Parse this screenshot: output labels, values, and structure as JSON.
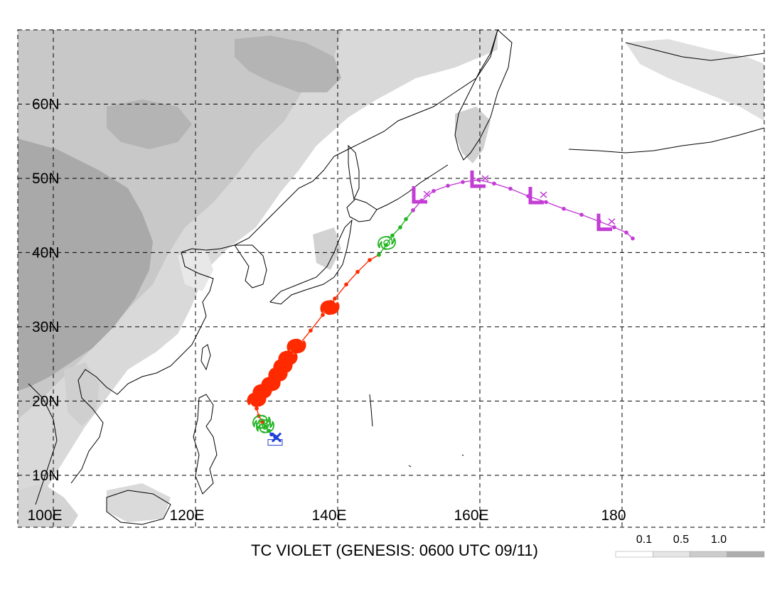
{
  "map": {
    "title": "TC VIOLET (GENESIS: 0600 UTC 09/11)",
    "lat_labels": [
      "10N",
      "20N",
      "30N",
      "40N",
      "50N",
      "60N"
    ],
    "lon_labels": [
      "100E",
      "120E",
      "140E",
      "160E",
      "180"
    ],
    "extent": {
      "lon_min": 95,
      "lon_max": 200,
      "lat_min": 3,
      "lat_max": 70
    },
    "lat_ticks": [
      10,
      20,
      30,
      40,
      50,
      60
    ],
    "lon_ticks": [
      100,
      120,
      140,
      160,
      180
    ],
    "legend": {
      "labels": [
        "0.1",
        "0.5",
        "1.0"
      ],
      "colors": [
        "#ffffff",
        "#e6e6e6",
        "#cccccc",
        "#adadad"
      ]
    },
    "colors": {
      "tropical_depression": "#1f3fd6",
      "tropical_storm": "#22b422",
      "typhoon": "#ff2a00",
      "extratropical": "#c33cd6"
    },
    "track": [
      {
        "stage": "tropical_depression",
        "points": [
          [
            131.2,
            15.2
          ],
          [
            130.7,
            15.5
          ],
          [
            130.3,
            16.0
          ]
        ]
      },
      {
        "stage": "tropical_storm",
        "points": [
          [
            130.3,
            16.0
          ],
          [
            129.8,
            16.6
          ],
          [
            129.4,
            17.2
          ]
        ]
      },
      {
        "stage": "typhoon",
        "points": [
          [
            129.4,
            17.2
          ],
          [
            128.9,
            18.0
          ],
          [
            128.6,
            19.0
          ],
          [
            128.7,
            20.0
          ],
          [
            129.3,
            21.0
          ],
          [
            130.2,
            22.2
          ],
          [
            131.0,
            23.0
          ],
          [
            131.9,
            24.2
          ],
          [
            132.5,
            25.1
          ],
          [
            133.4,
            26.2
          ],
          [
            134.5,
            27.5
          ],
          [
            136.2,
            29.5
          ],
          [
            137.9,
            31.6
          ],
          [
            139.6,
            33.8
          ],
          [
            141.2,
            35.7
          ],
          [
            142.8,
            37.4
          ],
          [
            144.5,
            39.0
          ],
          [
            145.8,
            39.7
          ]
        ]
      },
      {
        "stage": "tropical_storm",
        "points": [
          [
            145.8,
            39.7
          ],
          [
            146.8,
            41.0
          ],
          [
            147.7,
            42.3
          ],
          [
            148.8,
            43.4
          ],
          [
            149.6,
            44.5
          ],
          [
            150.6,
            45.7
          ]
        ]
      },
      {
        "stage": "extratropical",
        "points": [
          [
            150.6,
            45.7
          ],
          [
            151.8,
            47.0
          ],
          [
            153.5,
            48.3
          ],
          [
            155.5,
            49.0
          ],
          [
            157.6,
            49.5
          ],
          [
            159.8,
            49.8
          ],
          [
            162.0,
            49.3
          ],
          [
            164.3,
            48.6
          ],
          [
            166.8,
            47.6
          ],
          [
            169.3,
            46.8
          ],
          [
            171.8,
            45.9
          ],
          [
            174.3,
            45.1
          ],
          [
            176.8,
            44.2
          ],
          [
            178.9,
            43.4
          ],
          [
            180.6,
            42.7
          ],
          [
            181.5,
            41.9
          ]
        ]
      }
    ],
    "symbols": [
      {
        "type": "x",
        "stage": "tropical_depression",
        "lon": 131.4,
        "lat": 15.1
      },
      {
        "type": "tc-open",
        "stage": "tropical_storm",
        "lon": 129.8,
        "lat": 16.6
      },
      {
        "type": "tc-open",
        "stage": "tropical_storm",
        "lon": 129.3,
        "lat": 17.2
      },
      {
        "type": "tc-filled",
        "stage": "typhoon",
        "lon": 128.6,
        "lat": 20.2
      },
      {
        "type": "tc-filled",
        "stage": "typhoon",
        "lon": 129.4,
        "lat": 21.3
      },
      {
        "type": "tc-filled",
        "stage": "typhoon",
        "lon": 130.6,
        "lat": 22.3
      },
      {
        "type": "tc-filled",
        "stage": "typhoon",
        "lon": 131.6,
        "lat": 23.6
      },
      {
        "type": "tc-filled",
        "stage": "typhoon",
        "lon": 132.3,
        "lat": 24.7
      },
      {
        "type": "tc-filled",
        "stage": "typhoon",
        "lon": 133.0,
        "lat": 25.8
      },
      {
        "type": "tc-filled",
        "stage": "typhoon",
        "lon": 134.2,
        "lat": 27.4
      },
      {
        "type": "tc-filled",
        "stage": "typhoon",
        "lon": 138.9,
        "lat": 32.6
      },
      {
        "type": "tc-open",
        "stage": "tropical_storm",
        "lon": 146.9,
        "lat": 41.3
      },
      {
        "type": "L",
        "stage": "extratropical",
        "lon": 151.6,
        "lat": 47.7
      },
      {
        "type": "L",
        "stage": "extratropical",
        "lon": 159.8,
        "lat": 49.8
      },
      {
        "type": "L",
        "stage": "extratropical",
        "lon": 168.0,
        "lat": 47.6
      },
      {
        "type": "L",
        "stage": "extratropical",
        "lon": 177.6,
        "lat": 44.0
      }
    ]
  }
}
